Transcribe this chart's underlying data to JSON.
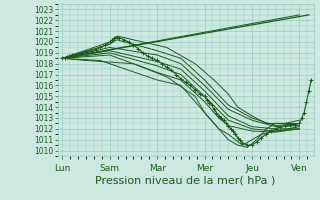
{
  "bg_color": "#cce8e0",
  "grid_color": "#99ccc0",
  "line_color": "#1a5c1a",
  "xlabel": "Pression niveau de la mer( hPa )",
  "xlabel_fontsize": 8,
  "ylim": [
    1009.5,
    1023.5
  ],
  "yticks": [
    1010,
    1011,
    1012,
    1013,
    1014,
    1015,
    1016,
    1017,
    1018,
    1019,
    1020,
    1021,
    1022,
    1023
  ],
  "xtick_labels": [
    "Lun",
    "Sam",
    "Mar",
    "Mer",
    "Jeu",
    "Ven"
  ],
  "xtick_positions": [
    0,
    1,
    2,
    3,
    4,
    5
  ],
  "xlim": [
    -0.1,
    5.3
  ],
  "figsize": [
    3.2,
    2.0
  ],
  "dpi": 100,
  "fan_lines": [
    {
      "x": [
        0.0,
        5.0
      ],
      "y": [
        1018.5,
        1022.5
      ]
    },
    {
      "x": [
        0.0,
        1.0,
        1.2,
        2.2,
        2.8,
        3.2,
        3.5,
        3.7,
        4.0,
        4.3,
        4.7,
        5.0
      ],
      "y": [
        1018.5,
        1020.0,
        1020.5,
        1019.5,
        1018.0,
        1016.5,
        1015.2,
        1014.0,
        1013.2,
        1012.5,
        1012.5,
        1012.8
      ]
    },
    {
      "x": [
        0.0,
        1.0,
        1.15,
        2.0,
        2.5,
        3.0,
        3.5,
        4.0,
        4.5,
        5.0
      ],
      "y": [
        1018.5,
        1019.8,
        1020.2,
        1019.2,
        1018.5,
        1016.5,
        1014.2,
        1013.0,
        1012.3,
        1012.5
      ]
    },
    {
      "x": [
        0.0,
        1.0,
        2.0,
        2.5,
        3.0,
        3.5,
        4.0,
        4.5,
        5.0
      ],
      "y": [
        1018.5,
        1019.5,
        1018.8,
        1018.0,
        1016.0,
        1013.8,
        1012.8,
        1012.2,
        1012.3
      ]
    },
    {
      "x": [
        0.0,
        1.0,
        2.0,
        2.5,
        3.0,
        3.5,
        4.0,
        4.5,
        5.0
      ],
      "y": [
        1018.5,
        1019.2,
        1018.2,
        1017.5,
        1015.5,
        1013.2,
        1012.2,
        1012.0,
        1012.0
      ]
    },
    {
      "x": [
        0.0,
        1.0,
        2.0,
        2.5,
        3.0,
        3.5,
        4.0,
        4.5,
        5.0
      ],
      "y": [
        1018.5,
        1019.0,
        1017.8,
        1017.0,
        1015.0,
        1012.8,
        1012.0,
        1011.8,
        1012.0
      ]
    },
    {
      "x": [
        0.0,
        1.0,
        2.0,
        2.5,
        3.0,
        3.3,
        3.5,
        4.0,
        4.5,
        5.0
      ],
      "y": [
        1018.5,
        1018.8,
        1017.2,
        1016.5,
        1014.5,
        1013.0,
        1012.3,
        1011.8,
        1011.7,
        1012.0
      ]
    },
    {
      "x": [
        0.0,
        0.8,
        2.0,
        2.5,
        3.0,
        3.3,
        3.5,
        3.8,
        4.2,
        4.5,
        5.0
      ],
      "y": [
        1018.5,
        1018.3,
        1016.5,
        1016.0,
        1013.5,
        1012.0,
        1011.5,
        1010.5,
        1011.5,
        1011.8,
        1012.2
      ]
    },
    {
      "x": [
        0.0,
        0.5,
        1.5,
        2.2,
        2.8,
        3.0,
        3.2,
        3.4,
        3.5,
        3.7,
        3.9,
        4.1,
        4.3,
        4.5,
        4.7,
        5.0
      ],
      "y": [
        1018.5,
        1018.3,
        1018.0,
        1016.8,
        1015.0,
        1013.5,
        1012.5,
        1011.5,
        1011.0,
        1010.5,
        1010.3,
        1011.0,
        1012.0,
        1012.5,
        1012.5,
        1012.5
      ]
    }
  ],
  "main_x": [
    0.0,
    0.05,
    0.1,
    0.15,
    0.2,
    0.3,
    0.4,
    0.5,
    0.6,
    0.7,
    0.8,
    0.9,
    1.0,
    1.05,
    1.1,
    1.15,
    1.2,
    1.3,
    1.4,
    1.5,
    1.6,
    1.7,
    1.8,
    1.9,
    2.0,
    2.1,
    2.2,
    2.3,
    2.4,
    2.5,
    2.6,
    2.7,
    2.8,
    2.9,
    3.0,
    3.05,
    3.1,
    3.15,
    3.2,
    3.25,
    3.3,
    3.35,
    3.4,
    3.45,
    3.5,
    3.55,
    3.6,
    3.65,
    3.7,
    3.75,
    3.8,
    3.9,
    4.0,
    4.1,
    4.2,
    4.3,
    4.4,
    4.5,
    4.6,
    4.7,
    4.8,
    4.9,
    5.0,
    5.05,
    5.1,
    5.15,
    5.2,
    5.25
  ],
  "main_y": [
    1018.5,
    1018.5,
    1018.6,
    1018.7,
    1018.8,
    1018.9,
    1019.0,
    1019.1,
    1019.2,
    1019.3,
    1019.5,
    1019.7,
    1020.0,
    1020.2,
    1020.4,
    1020.5,
    1020.4,
    1020.2,
    1020.0,
    1019.7,
    1019.4,
    1019.0,
    1018.7,
    1018.5,
    1018.3,
    1018.0,
    1017.7,
    1017.4,
    1017.0,
    1016.6,
    1016.3,
    1016.0,
    1015.6,
    1015.2,
    1015.0,
    1014.7,
    1014.4,
    1014.2,
    1013.8,
    1013.5,
    1013.2,
    1013.0,
    1012.8,
    1012.5,
    1012.3,
    1012.0,
    1011.8,
    1011.5,
    1011.2,
    1011.0,
    1010.7,
    1010.5,
    1010.5,
    1010.8,
    1011.2,
    1011.5,
    1011.8,
    1012.0,
    1012.2,
    1012.3,
    1012.4,
    1012.4,
    1012.5,
    1013.0,
    1013.5,
    1014.5,
    1015.5,
    1016.5
  ]
}
